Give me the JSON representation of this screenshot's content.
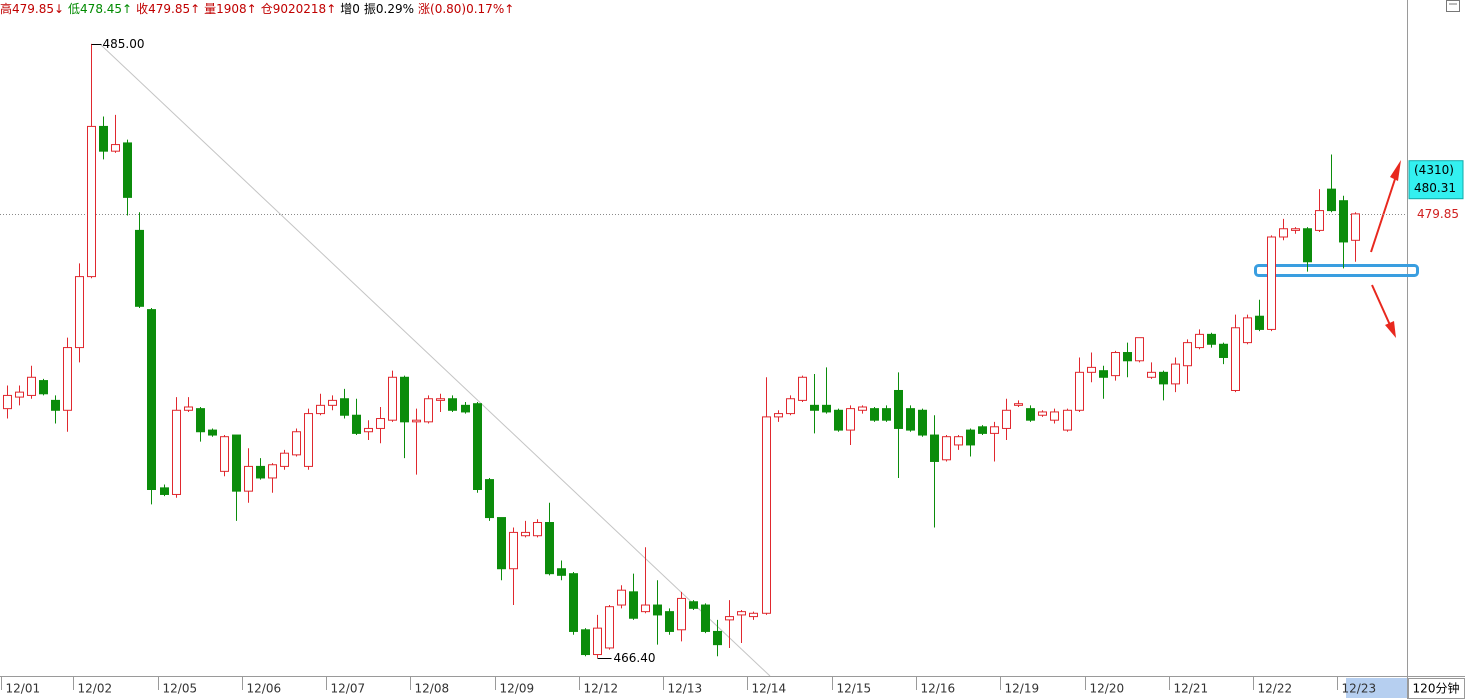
{
  "header": {
    "items": [
      {
        "text": "高479.85↓",
        "color": "#c00000"
      },
      {
        "text": "低478.45↑",
        "color": "#008a00"
      },
      {
        "text": "收479.85↑",
        "color": "#c00000"
      },
      {
        "text": "量1908↑",
        "color": "#c00000"
      },
      {
        "text": "仓9020218↑",
        "color": "#c00000"
      },
      {
        "text": "增0",
        "color": "#000000"
      },
      {
        "text": "振0.29%",
        "color": "#000000"
      },
      {
        "text": "涨(0.80)0.17%↑",
        "color": "#c00000"
      }
    ]
  },
  "chart_data": {
    "type": "candlestick",
    "period": "120分钟",
    "categories": [
      "12/01",
      null,
      null,
      null,
      null,
      null,
      "12/02",
      null,
      null,
      null,
      null,
      null,
      null,
      "12/05",
      null,
      null,
      null,
      null,
      null,
      null,
      "12/06",
      null,
      null,
      null,
      null,
      null,
      null,
      "12/07",
      null,
      null,
      null,
      null,
      null,
      null,
      "12/08",
      null,
      null,
      null,
      null,
      null,
      null,
      "12/09",
      null,
      null,
      null,
      null,
      null,
      null,
      "12/12",
      null,
      null,
      null,
      null,
      null,
      null,
      "12/13",
      null,
      null,
      null,
      null,
      null,
      null,
      "12/14",
      null,
      null,
      null,
      null,
      null,
      null,
      "12/15",
      null,
      null,
      null,
      null,
      null,
      null,
      "12/16",
      null,
      null,
      null,
      null,
      null,
      null,
      "12/19",
      null,
      null,
      null,
      null,
      null,
      null,
      "12/20",
      null,
      null,
      null,
      null,
      null,
      null,
      "12/21",
      null,
      null,
      null,
      null,
      null,
      null,
      "12/22",
      null,
      null,
      null,
      null,
      null,
      null,
      "12/23",
      null
    ],
    "open": [
      473.95,
      474.3,
      474.35,
      474.8,
      474.2,
      473.9,
      475.8,
      477.95,
      482.5,
      481.75,
      482.0,
      479.35,
      476.95,
      471.55,
      471.35,
      473.9,
      473.95,
      473.3,
      472.05,
      473.15,
      471.45,
      472.2,
      471.85,
      472.2,
      472.55,
      472.2,
      473.8,
      474.05,
      474.25,
      473.75,
      473.25,
      473.35,
      473.6,
      474.9,
      473.55,
      473.55,
      474.2,
      474.25,
      474.05,
      474.1,
      471.8,
      470.65,
      469.1,
      470.1,
      470.1,
      470.5,
      469.1,
      468.95,
      467.25,
      466.5,
      466.7,
      468.0,
      468.4,
      467.8,
      468.0,
      467.8,
      467.25,
      468.1,
      468.0,
      467.2,
      467.55,
      467.7,
      467.65,
      467.75,
      473.7,
      473.8,
      474.2,
      474.05,
      474.05,
      473.9,
      473.3,
      473.9,
      473.95,
      473.95,
      474.5,
      473.95,
      473.9,
      473.15,
      472.4,
      472.85,
      473.3,
      473.4,
      473.2,
      473.35,
      474.05,
      473.95,
      473.75,
      473.6,
      473.3,
      473.9,
      475.05,
      475.1,
      474.95,
      475.65,
      475.4,
      474.9,
      475.05,
      474.7,
      475.25,
      475.8,
      476.2,
      475.9,
      474.5,
      475.95,
      476.75,
      476.35,
      479.15,
      479.35,
      479.4,
      479.35,
      480.6,
      480.25,
      479.05
    ],
    "high": [
      474.65,
      474.65,
      475.25,
      474.85,
      474.35,
      476.1,
      478.35,
      485.0,
      482.8,
      482.85,
      482.1,
      479.9,
      477.0,
      471.65,
      474.3,
      474.3,
      474.0,
      473.35,
      473.15,
      473.15,
      472.75,
      472.45,
      472.3,
      472.7,
      473.35,
      473.95,
      474.4,
      474.35,
      474.55,
      474.25,
      473.6,
      474.0,
      475.1,
      474.95,
      473.95,
      474.35,
      474.4,
      474.35,
      474.15,
      474.15,
      471.85,
      470.65,
      470.35,
      470.55,
      470.6,
      471.1,
      469.35,
      469.0,
      467.3,
      467.7,
      468.0,
      468.6,
      468.95,
      469.75,
      468.75,
      467.9,
      468.4,
      468.15,
      468.05,
      467.55,
      468.15,
      467.85,
      467.8,
      474.9,
      473.9,
      474.35,
      474.95,
      475.0,
      475.2,
      473.95,
      474.05,
      474.05,
      474.0,
      474.05,
      475.05,
      474.05,
      473.95,
      473.75,
      473.15,
      473.15,
      473.35,
      473.45,
      473.55,
      474.25,
      474.2,
      474.05,
      473.9,
      473.95,
      473.95,
      475.5,
      475.65,
      475.25,
      475.7,
      475.95,
      476.1,
      475.35,
      475.1,
      475.5,
      476.05,
      476.35,
      476.25,
      475.95,
      476.8,
      476.8,
      477.25,
      479.2,
      479.7,
      479.45,
      479.45,
      480.6,
      481.65,
      480.4,
      479.9
    ],
    "low": [
      473.65,
      474.05,
      474.25,
      474.35,
      473.5,
      473.25,
      475.35,
      477.9,
      481.5,
      481.7,
      479.8,
      477.0,
      471.05,
      471.3,
      471.25,
      473.85,
      472.95,
      473.1,
      471.9,
      470.55,
      471.1,
      471.8,
      471.4,
      472.1,
      472.5,
      472.1,
      473.75,
      473.9,
      473.65,
      473.15,
      473.0,
      472.9,
      473.55,
      472.45,
      471.95,
      473.5,
      473.85,
      473.85,
      473.8,
      471.4,
      470.55,
      468.75,
      468.0,
      470.05,
      470.05,
      468.9,
      468.75,
      467.1,
      466.45,
      466.4,
      466.65,
      467.9,
      467.55,
      467.75,
      466.8,
      467.1,
      466.9,
      467.85,
      467.15,
      466.45,
      466.7,
      466.85,
      467.55,
      467.7,
      473.55,
      473.75,
      474.15,
      473.2,
      473.8,
      473.25,
      472.85,
      473.8,
      473.55,
      473.55,
      471.85,
      473.25,
      473.1,
      470.35,
      472.35,
      472.7,
      472.5,
      473.15,
      472.35,
      473.0,
      474.0,
      473.55,
      473.7,
      473.5,
      473.25,
      473.85,
      474.75,
      474.25,
      474.8,
      474.9,
      475.35,
      474.85,
      474.2,
      474.45,
      474.7,
      475.75,
      475.8,
      475.3,
      474.45,
      475.9,
      476.3,
      476.3,
      479.05,
      479.25,
      478.1,
      479.3,
      479.9,
      478.2,
      478.4
    ],
    "close": [
      474.35,
      474.45,
      474.9,
      474.4,
      473.9,
      475.8,
      477.95,
      482.5,
      481.75,
      481.95,
      480.35,
      477.05,
      471.5,
      471.35,
      473.9,
      474.0,
      473.25,
      473.15,
      473.1,
      471.45,
      472.2,
      471.85,
      472.25,
      472.6,
      473.25,
      473.8,
      474.05,
      474.2,
      473.75,
      473.2,
      473.35,
      473.65,
      474.9,
      473.55,
      473.6,
      474.25,
      474.25,
      473.9,
      473.85,
      471.5,
      470.65,
      469.1,
      470.2,
      470.2,
      470.5,
      468.95,
      468.9,
      467.2,
      466.5,
      467.3,
      467.95,
      468.45,
      467.6,
      468.0,
      467.7,
      467.2,
      468.2,
      467.9,
      467.2,
      466.8,
      467.65,
      467.8,
      467.75,
      473.7,
      473.8,
      474.25,
      474.9,
      473.9,
      473.85,
      473.3,
      473.95,
      474.0,
      473.6,
      473.6,
      473.35,
      473.3,
      473.15,
      472.35,
      473.1,
      473.1,
      472.85,
      473.2,
      473.4,
      473.9,
      474.1,
      473.6,
      473.85,
      473.85,
      473.9,
      475.05,
      475.2,
      474.9,
      475.65,
      475.4,
      476.1,
      475.05,
      474.7,
      475.3,
      475.95,
      476.2,
      475.9,
      475.5,
      476.4,
      476.7,
      476.35,
      479.15,
      479.4,
      479.4,
      478.4,
      479.95,
      479.95,
      479.0,
      479.85
    ],
    "high_labels": [
      null,
      null,
      null,
      null,
      null,
      null,
      null,
      "485.00",
      null,
      null,
      null,
      null,
      null,
      null,
      null,
      null,
      null,
      null,
      null,
      null,
      null,
      null,
      null,
      null,
      null,
      null,
      null,
      null,
      null,
      null,
      null,
      null,
      null,
      null,
      null,
      null,
      null,
      null,
      null,
      null,
      null,
      null,
      null,
      null,
      null,
      null,
      null,
      null,
      null,
      null,
      null,
      null,
      null,
      null,
      null,
      null,
      null,
      null,
      null,
      null,
      null,
      null,
      null,
      null,
      null,
      null,
      null,
      null,
      null,
      null,
      null,
      null,
      null,
      null,
      null,
      null,
      null,
      null,
      null,
      null,
      null,
      null,
      null,
      null,
      null,
      null,
      null,
      null,
      null,
      null,
      null,
      null,
      null,
      null,
      null,
      null,
      null,
      null,
      null,
      null,
      null,
      null,
      null,
      null,
      null,
      null,
      null,
      null,
      null,
      null,
      null,
      null,
      null
    ],
    "low_labels": [
      null,
      null,
      null,
      null,
      null,
      null,
      null,
      null,
      null,
      null,
      null,
      null,
      null,
      null,
      null,
      null,
      null,
      null,
      null,
      null,
      null,
      null,
      null,
      null,
      null,
      null,
      null,
      null,
      null,
      null,
      null,
      null,
      null,
      null,
      null,
      null,
      null,
      null,
      null,
      null,
      null,
      null,
      null,
      null,
      null,
      null,
      null,
      null,
      null,
      "466.40",
      null,
      null,
      null,
      null,
      null,
      null,
      null,
      null,
      null,
      null,
      null,
      null,
      null,
      null,
      null,
      null,
      null,
      null,
      null,
      null,
      null,
      null,
      null,
      null,
      null,
      null,
      null,
      null,
      null,
      null,
      null,
      null,
      null,
      null,
      null,
      null,
      null,
      null,
      null,
      null,
      null,
      null,
      null,
      null,
      null,
      null,
      null,
      null,
      null,
      null,
      null,
      null,
      null,
      null,
      null,
      null,
      null,
      null,
      null,
      null,
      null,
      null,
      null
    ],
    "ylim": [
      465.85,
      486.33
    ],
    "up_color": "#e0282e",
    "down_color": "#0b8c0b",
    "last_price_line": true,
    "cursor": {
      "label": "(4310)",
      "price": 480.31
    }
  }
}
